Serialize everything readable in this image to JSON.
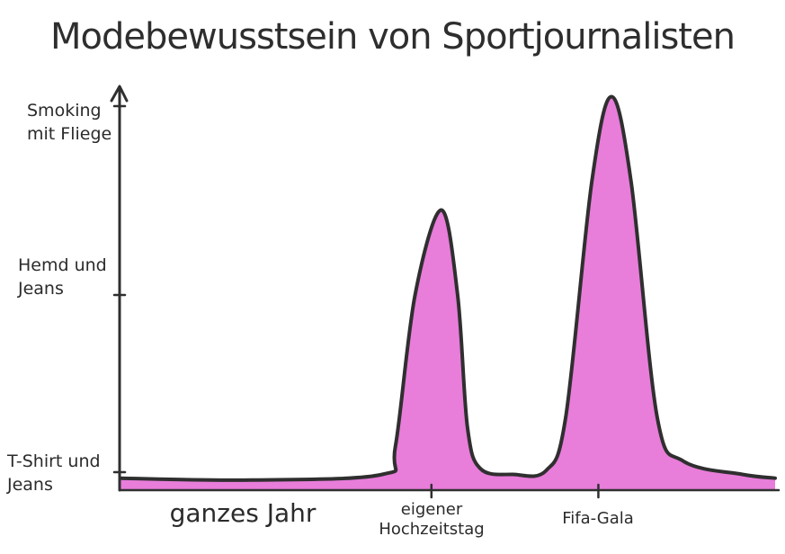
{
  "chart_data": {
    "type": "area",
    "title": "Modebewusstsein von Sportjournalisten",
    "y_categories": [
      "T-Shirt und Jeans",
      "Hemd und Jeans",
      "Smoking mit Fliege"
    ],
    "x_labels": [
      "ganzes Jahr",
      "eigener Hochzeitstag",
      "Fifa-Gala"
    ],
    "ylim": [
      0,
      2
    ],
    "grid": false,
    "legend": "none",
    "series": [
      {
        "points": [
          [
            0.0,
            0.03
          ],
          [
            0.2,
            0.02
          ],
          [
            0.4,
            0.05
          ],
          [
            0.42,
            0.2
          ],
          [
            0.45,
            1.0
          ],
          [
            0.49,
            1.45
          ],
          [
            0.515,
            1.0
          ],
          [
            0.53,
            0.3
          ],
          [
            0.55,
            0.08
          ],
          [
            0.6,
            0.05
          ],
          [
            0.65,
            0.07
          ],
          [
            0.68,
            0.35
          ],
          [
            0.72,
            1.6
          ],
          [
            0.75,
            2.05
          ],
          [
            0.78,
            1.6
          ],
          [
            0.82,
            0.35
          ],
          [
            0.86,
            0.12
          ],
          [
            0.95,
            0.05
          ],
          [
            1.0,
            0.03
          ]
        ]
      }
    ],
    "fill_color": "#e66fd6",
    "line_color": "#2f2f2f"
  }
}
